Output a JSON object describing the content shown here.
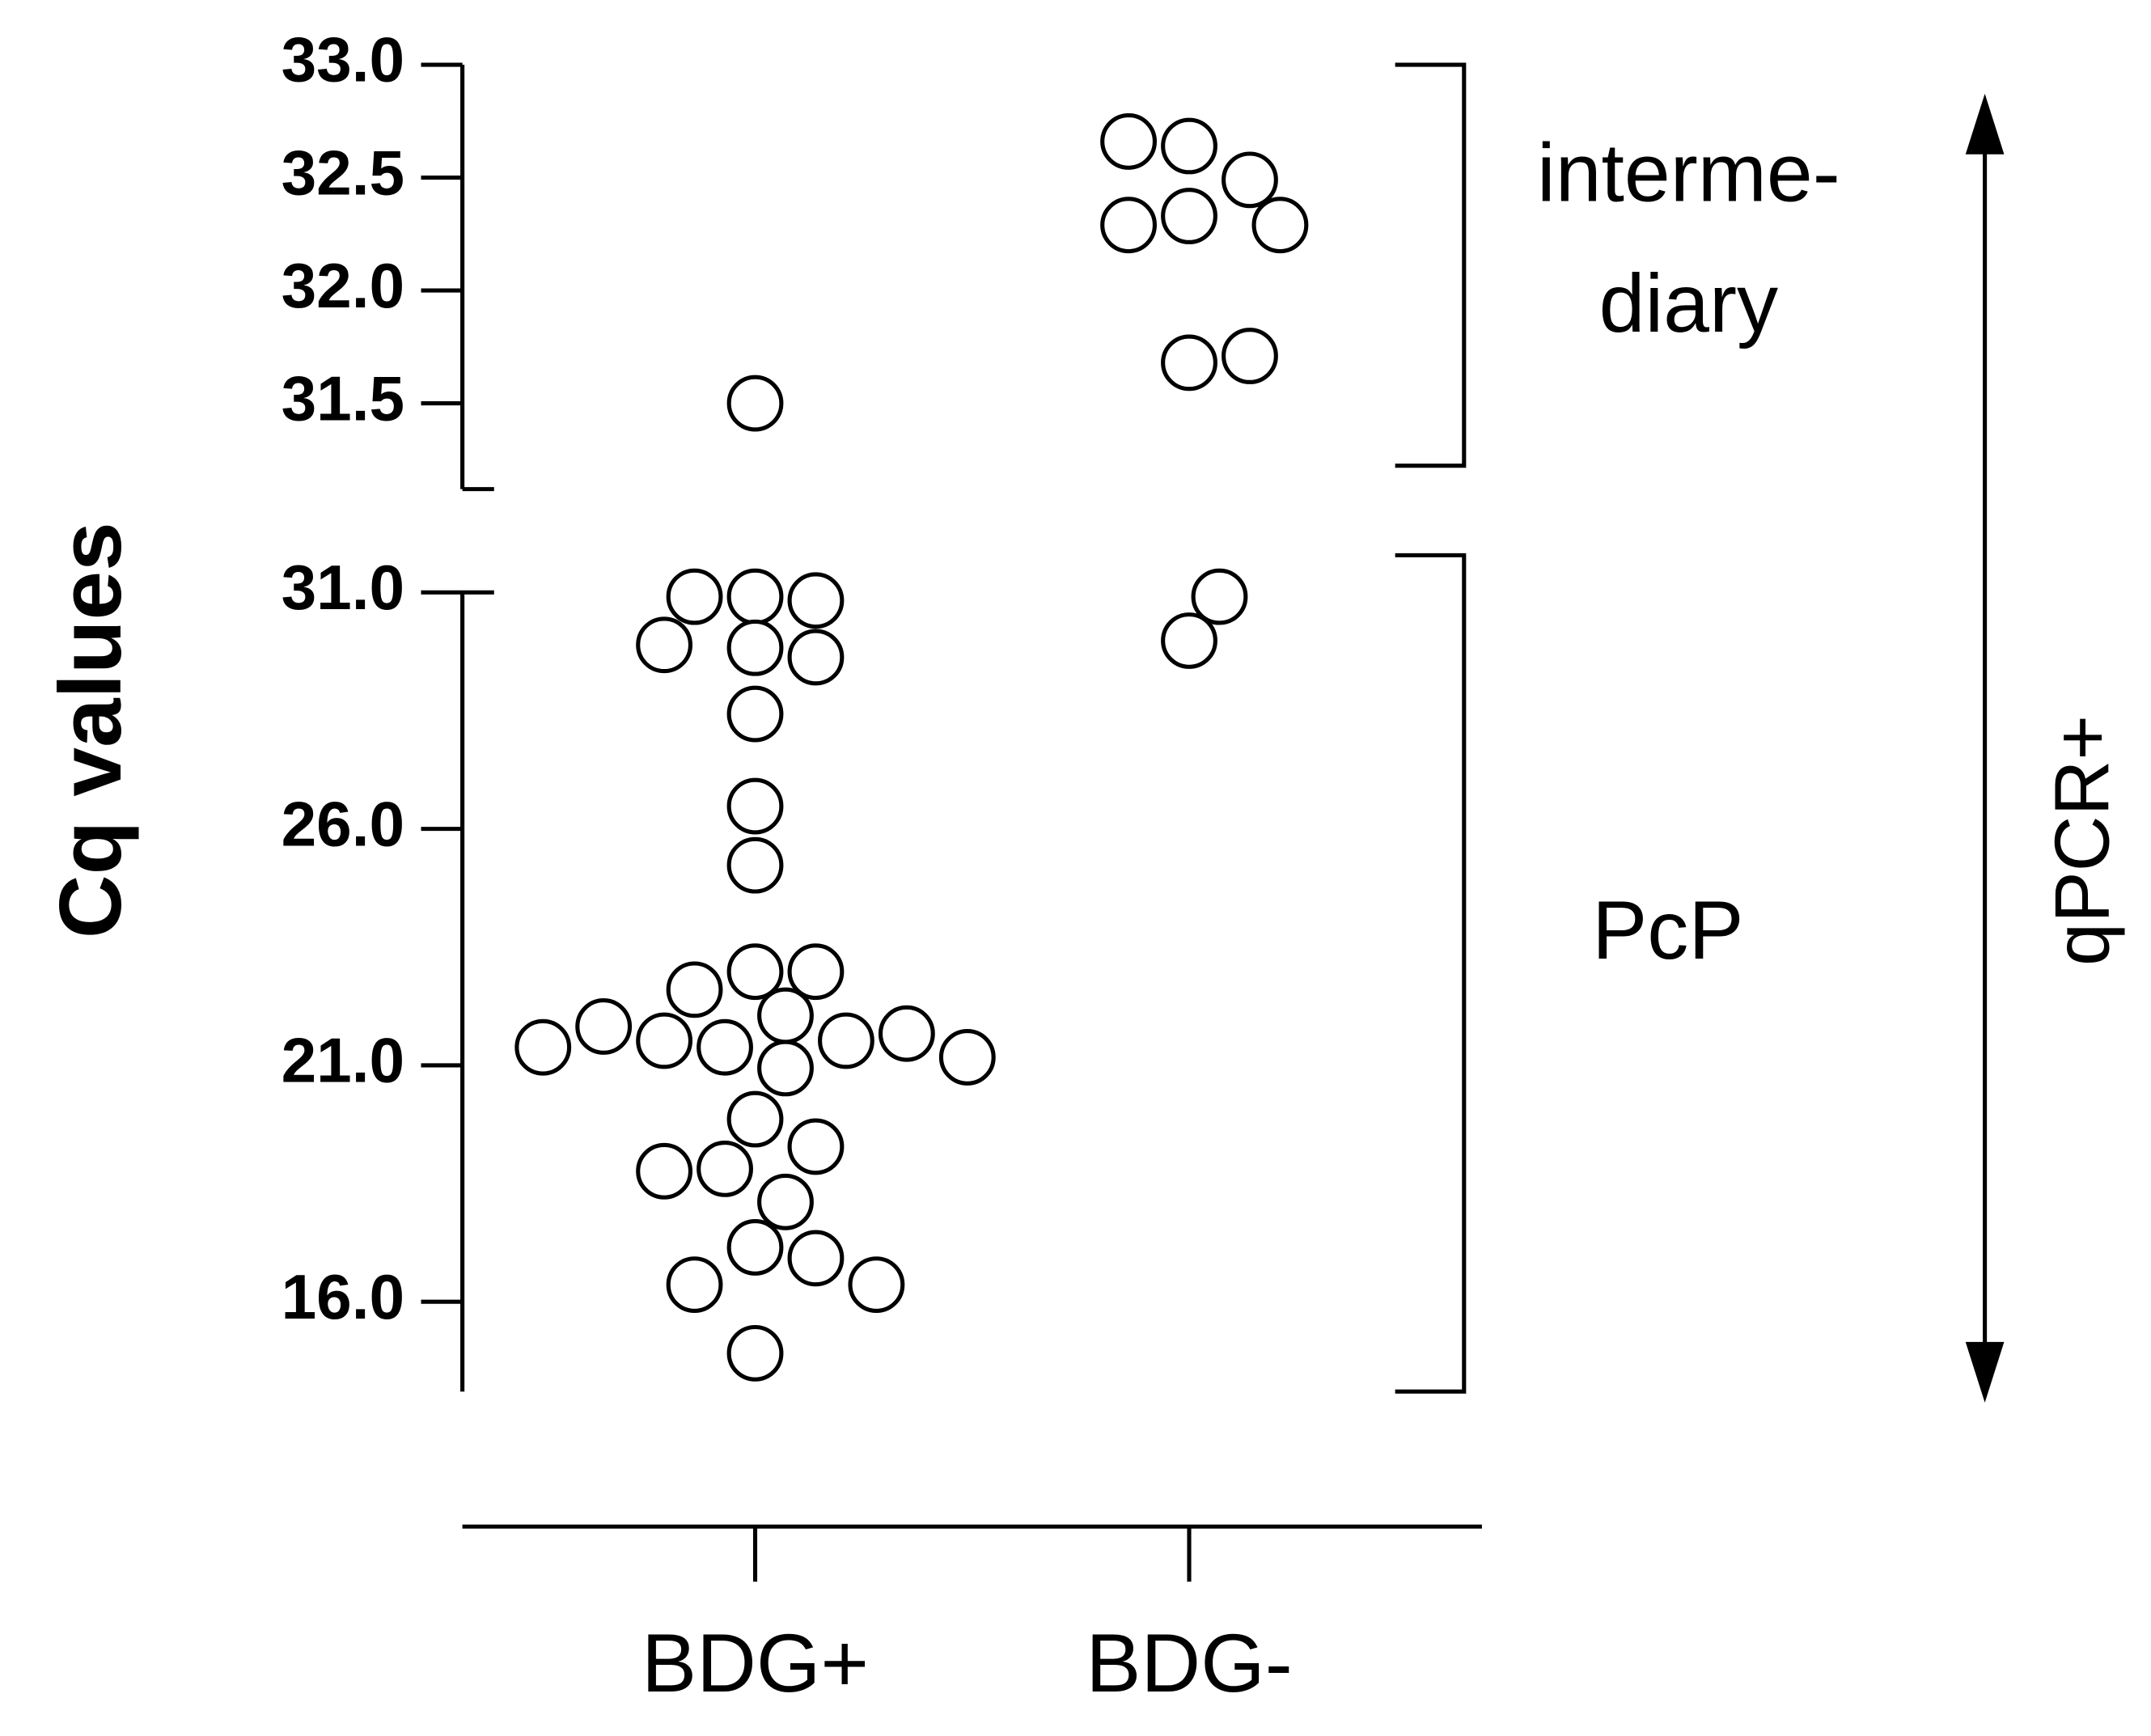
{
  "chart_data": {
    "type": "strip",
    "ylabel": "Cq values",
    "categories": [
      "BDG+",
      "BDG-"
    ],
    "values": [
      [
        31.5,
        30.91,
        30.83,
        30.91,
        29.83,
        29.63,
        29.89,
        28.43,
        26.48,
        25.23,
        22.98,
        22.98,
        22.6,
        22.05,
        21.38,
        21.52,
        21.52,
        21.67,
        21.82,
        20.94,
        21.17,
        21.38,
        19.86,
        19.28,
        18.81,
        18.76,
        18.11,
        17.15,
        16.92,
        16.36,
        16.36,
        14.91
      ],
      [
        32.64,
        32.49,
        32.66,
        32.33,
        32.29,
        32.29,
        31.68,
        31.71,
        29.98,
        30.91
      ]
    ],
    "y_segments": [
      {
        "ylim": [
          14.1,
          31.0
        ],
        "yticks": [
          {
            "value": 16,
            "label": "16.0"
          },
          {
            "value": 21,
            "label": "21.0"
          },
          {
            "value": 26,
            "label": "26.0"
          },
          {
            "value": 31,
            "label": "31.0"
          }
        ]
      },
      {
        "ylim": [
          31.12,
          33.0
        ],
        "yticks": [
          {
            "value": 31.5,
            "label": "31.5"
          },
          {
            "value": 32,
            "label": "32.0"
          },
          {
            "value": 32.5,
            "label": "32.5"
          },
          {
            "value": 33,
            "label": "33.0"
          }
        ]
      }
    ],
    "intermediary_label": [
      "interme-",
      "diary"
    ],
    "pcp_label": "PcP",
    "arrow_label": "qPCR+"
  }
}
